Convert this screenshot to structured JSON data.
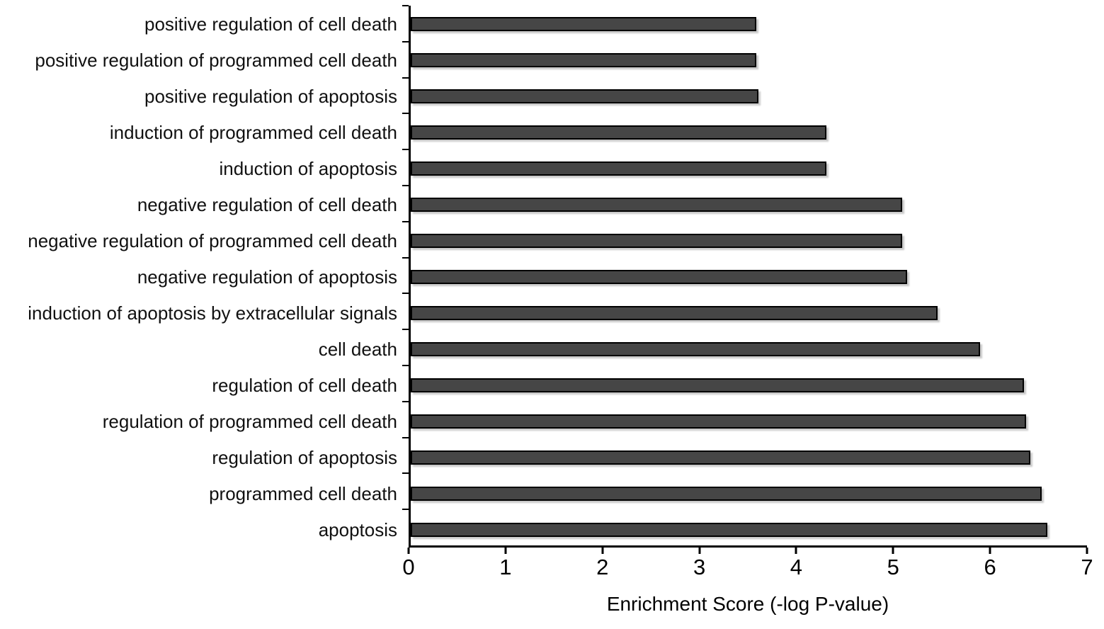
{
  "chart_data": {
    "type": "bar",
    "orientation": "horizontal",
    "title": "",
    "xlabel": "Enrichment Score (-log P-value)",
    "ylabel": "",
    "xlim": [
      0,
      7
    ],
    "x_ticks": [
      0,
      1,
      2,
      3,
      4,
      5,
      6,
      7
    ],
    "grid": false,
    "legend": false,
    "bar_color": "#464646",
    "bar_border_color": "#000000",
    "categories": [
      "positive regulation of cell death",
      "positive regulation of programmed cell death",
      "positive regulation of apoptosis",
      "induction of programmed cell death",
      "induction of apoptosis",
      "negative regulation of cell death",
      "negative regulation of programmed cell death",
      "negative regulation of apoptosis",
      "induction of apoptosis by extracellular signals",
      "cell death",
      "regulation of cell death",
      "regulation of programmed cell death",
      "regulation of apoptosis",
      "programmed cell death",
      "apoptosis"
    ],
    "values": [
      3.58,
      3.58,
      3.6,
      4.3,
      4.3,
      5.09,
      5.09,
      5.14,
      5.45,
      5.89,
      6.35,
      6.37,
      6.41,
      6.53,
      6.59
    ]
  }
}
